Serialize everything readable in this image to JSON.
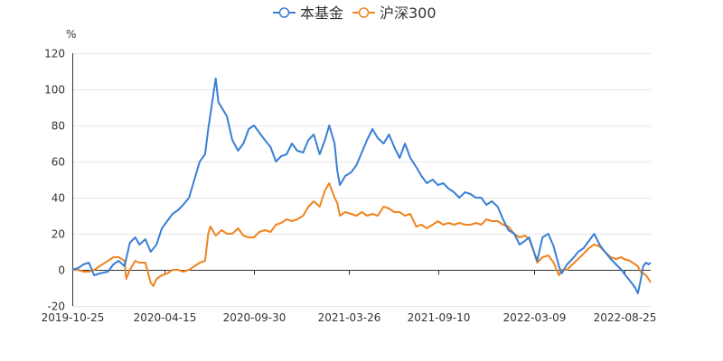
{
  "chart_data": {
    "type": "line",
    "unit": "%",
    "ylim": [
      -20,
      120
    ],
    "yticks": [
      -20,
      0,
      20,
      40,
      60,
      80,
      100,
      120
    ],
    "xticks": [
      "2019-10-25",
      "2020-04-15",
      "2020-09-30",
      "2021-03-26",
      "2021-09-10",
      "2022-03-09",
      "2022-08-25"
    ],
    "x_range": [
      "2019-10-25",
      "2022-10-14"
    ],
    "grid": "horizontal",
    "legend": "top-center",
    "series": [
      {
        "name": "本基金",
        "color": "#3a7fd5",
        "points": [
          [
            "2019-10-25",
            0
          ],
          [
            "2019-11-05",
            1
          ],
          [
            "2019-11-15",
            3
          ],
          [
            "2019-11-25",
            4
          ],
          [
            "2019-12-05",
            -3
          ],
          [
            "2019-12-15",
            -2
          ],
          [
            "2019-12-31",
            -1
          ],
          [
            "2020-01-10",
            3
          ],
          [
            "2020-01-20",
            5
          ],
          [
            "2020-01-31",
            2
          ],
          [
            "2020-02-10",
            15
          ],
          [
            "2020-02-20",
            18
          ],
          [
            "2020-02-28",
            14
          ],
          [
            "2020-03-10",
            17
          ],
          [
            "2020-03-20",
            10
          ],
          [
            "2020-03-31",
            14
          ],
          [
            "2020-04-10",
            23
          ],
          [
            "2020-04-20",
            27
          ],
          [
            "2020-04-30",
            31
          ],
          [
            "2020-05-10",
            33
          ],
          [
            "2020-05-20",
            36
          ],
          [
            "2020-05-31",
            40
          ],
          [
            "2020-06-10",
            50
          ],
          [
            "2020-06-20",
            60
          ],
          [
            "2020-06-30",
            64
          ],
          [
            "2020-07-06",
            78
          ],
          [
            "2020-07-10",
            86
          ],
          [
            "2020-07-15",
            96
          ],
          [
            "2020-07-20",
            106
          ],
          [
            "2020-07-25",
            93
          ],
          [
            "2020-07-31",
            90
          ],
          [
            "2020-08-10",
            85
          ],
          [
            "2020-08-20",
            72
          ],
          [
            "2020-08-31",
            66
          ],
          [
            "2020-09-10",
            70
          ],
          [
            "2020-09-20",
            78
          ],
          [
            "2020-09-30",
            80
          ],
          [
            "2020-10-10",
            76
          ],
          [
            "2020-10-20",
            72
          ],
          [
            "2020-10-31",
            68
          ],
          [
            "2020-11-10",
            60
          ],
          [
            "2020-11-20",
            63
          ],
          [
            "2020-11-30",
            64
          ],
          [
            "2020-12-10",
            70
          ],
          [
            "2020-12-20",
            66
          ],
          [
            "2020-12-31",
            65
          ],
          [
            "2021-01-10",
            72
          ],
          [
            "2021-01-20",
            75
          ],
          [
            "2021-01-31",
            64
          ],
          [
            "2021-02-10",
            72
          ],
          [
            "2021-02-18",
            80
          ],
          [
            "2021-02-28",
            70
          ],
          [
            "2021-03-05",
            55
          ],
          [
            "2021-03-10",
            47
          ],
          [
            "2021-03-20",
            52
          ],
          [
            "2021-03-31",
            54
          ],
          [
            "2021-04-10",
            58
          ],
          [
            "2021-04-20",
            65
          ],
          [
            "2021-04-30",
            72
          ],
          [
            "2021-05-10",
            78
          ],
          [
            "2021-05-20",
            73
          ],
          [
            "2021-05-31",
            70
          ],
          [
            "2021-06-10",
            75
          ],
          [
            "2021-06-20",
            68
          ],
          [
            "2021-06-30",
            62
          ],
          [
            "2021-07-10",
            70
          ],
          [
            "2021-07-20",
            62
          ],
          [
            "2021-07-31",
            57
          ],
          [
            "2021-08-10",
            52
          ],
          [
            "2021-08-20",
            48
          ],
          [
            "2021-08-31",
            50
          ],
          [
            "2021-09-10",
            47
          ],
          [
            "2021-09-20",
            48
          ],
          [
            "2021-09-30",
            45
          ],
          [
            "2021-10-10",
            43
          ],
          [
            "2021-10-20",
            40
          ],
          [
            "2021-10-31",
            43
          ],
          [
            "2021-11-10",
            42
          ],
          [
            "2021-11-20",
            40
          ],
          [
            "2021-11-30",
            40
          ],
          [
            "2021-12-10",
            36
          ],
          [
            "2021-12-20",
            38
          ],
          [
            "2021-12-31",
            35
          ],
          [
            "2022-01-10",
            28
          ],
          [
            "2022-01-20",
            22
          ],
          [
            "2022-01-31",
            20
          ],
          [
            "2022-02-10",
            14
          ],
          [
            "2022-02-20",
            16
          ],
          [
            "2022-02-28",
            18
          ],
          [
            "2022-03-09",
            10
          ],
          [
            "2022-03-15",
            5
          ],
          [
            "2022-03-25",
            18
          ],
          [
            "2022-04-05",
            20
          ],
          [
            "2022-04-15",
            13
          ],
          [
            "2022-04-25",
            2
          ],
          [
            "2022-04-30",
            -2
          ],
          [
            "2022-05-10",
            3
          ],
          [
            "2022-05-20",
            6
          ],
          [
            "2022-05-31",
            10
          ],
          [
            "2022-06-10",
            12
          ],
          [
            "2022-06-20",
            16
          ],
          [
            "2022-06-30",
            20
          ],
          [
            "2022-07-10",
            14
          ],
          [
            "2022-07-20",
            10
          ],
          [
            "2022-07-31",
            6
          ],
          [
            "2022-08-10",
            3
          ],
          [
            "2022-08-20",
            0
          ],
          [
            "2022-08-25",
            -2
          ],
          [
            "2022-09-05",
            -6
          ],
          [
            "2022-09-15",
            -10
          ],
          [
            "2022-09-20",
            -13
          ],
          [
            "2022-09-25",
            -6
          ],
          [
            "2022-09-30",
            2
          ],
          [
            "2022-10-05",
            4
          ],
          [
            "2022-10-10",
            3
          ],
          [
            "2022-10-14",
            4
          ]
        ]
      },
      {
        "name": "沪深300",
        "color": "#f08420",
        "points": [
          [
            "2019-10-25",
            0
          ],
          [
            "2019-11-05",
            0
          ],
          [
            "2019-11-15",
            -1
          ],
          [
            "2019-11-25",
            -1
          ],
          [
            "2019-12-05",
            0
          ],
          [
            "2019-12-15",
            2
          ],
          [
            "2019-12-31",
            5
          ],
          [
            "2020-01-10",
            7
          ],
          [
            "2020-01-20",
            7
          ],
          [
            "2020-01-31",
            5
          ],
          [
            "2020-02-03",
            -5
          ],
          [
            "2020-02-10",
            0
          ],
          [
            "2020-02-20",
            5
          ],
          [
            "2020-02-28",
            4
          ],
          [
            "2020-03-10",
            4
          ],
          [
            "2020-03-20",
            -7
          ],
          [
            "2020-03-25",
            -9
          ],
          [
            "2020-03-31",
            -5
          ],
          [
            "2020-04-10",
            -3
          ],
          [
            "2020-04-20",
            -2
          ],
          [
            "2020-04-30",
            0
          ],
          [
            "2020-05-10",
            0
          ],
          [
            "2020-05-20",
            -1
          ],
          [
            "2020-05-31",
            0
          ],
          [
            "2020-06-10",
            2
          ],
          [
            "2020-06-20",
            4
          ],
          [
            "2020-06-30",
            5
          ],
          [
            "2020-07-06",
            20
          ],
          [
            "2020-07-10",
            24
          ],
          [
            "2020-07-20",
            19
          ],
          [
            "2020-07-31",
            22
          ],
          [
            "2020-08-10",
            20
          ],
          [
            "2020-08-20",
            20
          ],
          [
            "2020-08-31",
            23
          ],
          [
            "2020-09-10",
            19
          ],
          [
            "2020-09-20",
            18
          ],
          [
            "2020-09-30",
            18
          ],
          [
            "2020-10-10",
            21
          ],
          [
            "2020-10-20",
            22
          ],
          [
            "2020-10-31",
            21
          ],
          [
            "2020-11-10",
            25
          ],
          [
            "2020-11-20",
            26
          ],
          [
            "2020-11-30",
            28
          ],
          [
            "2020-12-10",
            27
          ],
          [
            "2020-12-20",
            28
          ],
          [
            "2020-12-31",
            30
          ],
          [
            "2021-01-10",
            35
          ],
          [
            "2021-01-20",
            38
          ],
          [
            "2021-01-31",
            35
          ],
          [
            "2021-02-10",
            44
          ],
          [
            "2021-02-18",
            48
          ],
          [
            "2021-02-28",
            40
          ],
          [
            "2021-03-05",
            37
          ],
          [
            "2021-03-10",
            30
          ],
          [
            "2021-03-20",
            32
          ],
          [
            "2021-03-31",
            31
          ],
          [
            "2021-04-10",
            30
          ],
          [
            "2021-04-20",
            32
          ],
          [
            "2021-04-30",
            30
          ],
          [
            "2021-05-10",
            31
          ],
          [
            "2021-05-20",
            30
          ],
          [
            "2021-05-31",
            35
          ],
          [
            "2021-06-10",
            34
          ],
          [
            "2021-06-20",
            32
          ],
          [
            "2021-06-30",
            32
          ],
          [
            "2021-07-10",
            30
          ],
          [
            "2021-07-20",
            31
          ],
          [
            "2021-07-31",
            24
          ],
          [
            "2021-08-10",
            25
          ],
          [
            "2021-08-20",
            23
          ],
          [
            "2021-08-31",
            25
          ],
          [
            "2021-09-10",
            27
          ],
          [
            "2021-09-20",
            25
          ],
          [
            "2021-09-30",
            26
          ],
          [
            "2021-10-10",
            25
          ],
          [
            "2021-10-20",
            26
          ],
          [
            "2021-10-31",
            25
          ],
          [
            "2021-11-10",
            25
          ],
          [
            "2021-11-20",
            26
          ],
          [
            "2021-11-30",
            25
          ],
          [
            "2021-12-10",
            28
          ],
          [
            "2021-12-20",
            27
          ],
          [
            "2021-12-31",
            27
          ],
          [
            "2022-01-10",
            25
          ],
          [
            "2022-01-20",
            24
          ],
          [
            "2022-01-31",
            20
          ],
          [
            "2022-02-10",
            18
          ],
          [
            "2022-02-20",
            19
          ],
          [
            "2022-02-28",
            17
          ],
          [
            "2022-03-09",
            10
          ],
          [
            "2022-03-15",
            4
          ],
          [
            "2022-03-25",
            7
          ],
          [
            "2022-04-05",
            8
          ],
          [
            "2022-04-15",
            4
          ],
          [
            "2022-04-25",
            -3
          ],
          [
            "2022-04-30",
            0
          ],
          [
            "2022-05-10",
            0
          ],
          [
            "2022-05-20",
            3
          ],
          [
            "2022-05-31",
            6
          ],
          [
            "2022-06-10",
            9
          ],
          [
            "2022-06-20",
            12
          ],
          [
            "2022-06-30",
            14
          ],
          [
            "2022-07-10",
            13
          ],
          [
            "2022-07-20",
            10
          ],
          [
            "2022-07-31",
            7
          ],
          [
            "2022-08-10",
            6
          ],
          [
            "2022-08-20",
            7
          ],
          [
            "2022-08-25",
            6
          ],
          [
            "2022-09-05",
            5
          ],
          [
            "2022-09-15",
            3
          ],
          [
            "2022-09-20",
            2
          ],
          [
            "2022-09-25",
            -1
          ],
          [
            "2022-09-30",
            -2
          ],
          [
            "2022-10-05",
            -3
          ],
          [
            "2022-10-10",
            -5
          ],
          [
            "2022-10-14",
            -7
          ]
        ]
      }
    ]
  }
}
